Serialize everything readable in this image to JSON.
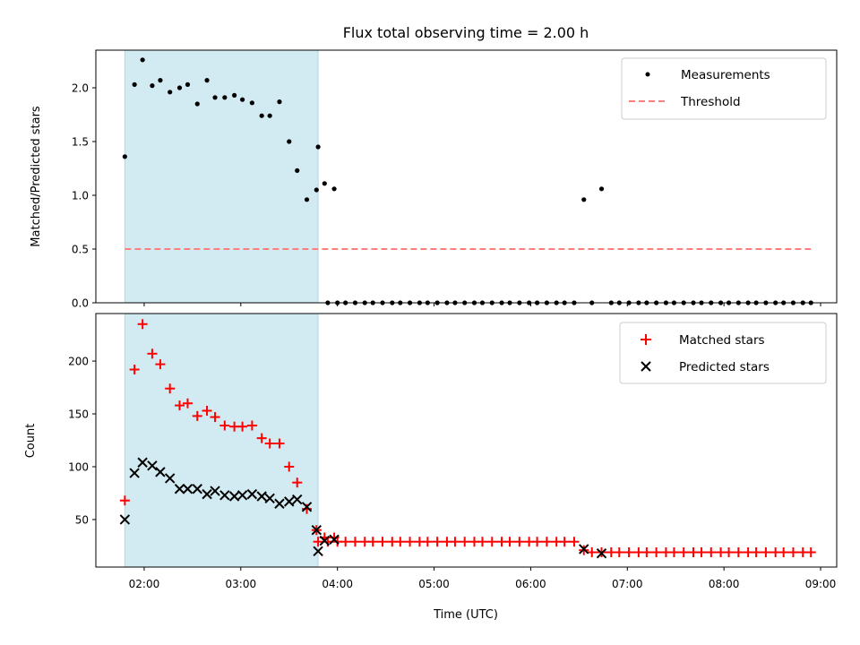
{
  "chart_data": [
    {
      "type": "scatter",
      "title": "Flux total observing time = 2.00 h",
      "xlabel": "",
      "ylabel": "Matched/Predicted stars",
      "ylim": [
        0,
        2.35
      ],
      "yticks": [
        0.0,
        0.5,
        1.0,
        1.5,
        2.0
      ],
      "ytick_labels": [
        "0.0",
        "0.5",
        "1.0",
        "1.5",
        "2.0"
      ],
      "xlim": [
        "01:30",
        "09:10"
      ],
      "highlight_span": [
        "01:48",
        "03:48"
      ],
      "highlight_color": "#add8e6",
      "threshold": 0.5,
      "legend": {
        "placement": "top-right",
        "entries": [
          "Measurements",
          "Threshold"
        ]
      },
      "series": [
        {
          "name": "Measurements",
          "marker": "dot",
          "color": "#000000",
          "points": [
            [
              "01:48",
              1.36
            ],
            [
              "01:54",
              2.03
            ],
            [
              "01:59",
              2.26
            ],
            [
              "02:05",
              2.02
            ],
            [
              "02:10",
              2.07
            ],
            [
              "02:16",
              1.96
            ],
            [
              "02:22",
              2.0
            ],
            [
              "02:27",
              2.03
            ],
            [
              "02:33",
              1.85
            ],
            [
              "02:39",
              2.07
            ],
            [
              "02:44",
              1.91
            ],
            [
              "02:50",
              1.91
            ],
            [
              "02:56",
              1.93
            ],
            [
              "03:01",
              1.89
            ],
            [
              "03:07",
              1.86
            ],
            [
              "03:13",
              1.74
            ],
            [
              "03:18",
              1.74
            ],
            [
              "03:24",
              1.87
            ],
            [
              "03:30",
              1.5
            ],
            [
              "03:35",
              1.23
            ],
            [
              "03:41",
              0.96
            ],
            [
              "03:47",
              1.05
            ],
            [
              "03:52",
              1.11
            ],
            [
              "03:58",
              1.06
            ],
            [
              "03:48",
              1.45
            ],
            [
              "03:54",
              0.0
            ],
            [
              "04:00",
              0.0
            ],
            [
              "04:05",
              0.0
            ],
            [
              "04:11",
              0.0
            ],
            [
              "04:17",
              0.0
            ],
            [
              "04:22",
              0.0
            ],
            [
              "04:28",
              0.0
            ],
            [
              "04:34",
              0.0
            ],
            [
              "04:39",
              0.0
            ],
            [
              "04:45",
              0.0
            ],
            [
              "04:51",
              0.0
            ],
            [
              "04:56",
              0.0
            ],
            [
              "05:02",
              0.0
            ],
            [
              "05:08",
              0.0
            ],
            [
              "05:13",
              0.0
            ],
            [
              "05:19",
              0.0
            ],
            [
              "05:25",
              0.0
            ],
            [
              "05:30",
              0.0
            ],
            [
              "05:36",
              0.0
            ],
            [
              "05:42",
              0.0
            ],
            [
              "05:47",
              0.0
            ],
            [
              "05:53",
              0.0
            ],
            [
              "05:59",
              0.0
            ],
            [
              "06:04",
              0.0
            ],
            [
              "06:10",
              0.0
            ],
            [
              "06:16",
              0.0
            ],
            [
              "06:21",
              0.0
            ],
            [
              "06:27",
              0.0
            ],
            [
              "06:33",
              0.96
            ],
            [
              "06:38",
              0.0
            ],
            [
              "06:44",
              1.06
            ],
            [
              "06:50",
              0.0
            ],
            [
              "06:55",
              0.0
            ],
            [
              "07:01",
              0.0
            ],
            [
              "07:07",
              0.0
            ],
            [
              "07:12",
              0.0
            ],
            [
              "07:18",
              0.0
            ],
            [
              "07:24",
              0.0
            ],
            [
              "07:29",
              0.0
            ],
            [
              "07:35",
              0.0
            ],
            [
              "07:41",
              0.0
            ],
            [
              "07:46",
              0.0
            ],
            [
              "07:52",
              0.0
            ],
            [
              "07:58",
              0.0
            ],
            [
              "08:03",
              0.0
            ],
            [
              "08:09",
              0.0
            ],
            [
              "08:15",
              0.0
            ],
            [
              "08:20",
              0.0
            ],
            [
              "08:26",
              0.0
            ],
            [
              "08:32",
              0.0
            ],
            [
              "08:37",
              0.0
            ],
            [
              "08:43",
              0.0
            ],
            [
              "08:49",
              0.0
            ],
            [
              "08:54",
              0.0
            ]
          ]
        },
        {
          "name": "Threshold",
          "marker": "dashed-line",
          "color": "#ff7f7f",
          "points": [
            [
              "01:48",
              0.5
            ],
            [
              "08:54",
              0.5
            ]
          ]
        }
      ]
    },
    {
      "type": "scatter",
      "title": "",
      "xlabel": "Time (UTC)",
      "ylabel": "Count",
      "ylim": [
        5,
        245
      ],
      "yticks": [
        50,
        100,
        150,
        200
      ],
      "ytick_labels": [
        "50",
        "100",
        "150",
        "200"
      ],
      "xlim": [
        "01:30",
        "09:10"
      ],
      "xticks": [
        "02:00",
        "03:00",
        "04:00",
        "05:00",
        "06:00",
        "07:00",
        "08:00",
        "09:00"
      ],
      "xtick_labels": [
        "02:00",
        "03:00",
        "04:00",
        "05:00",
        "06:00",
        "07:00",
        "08:00",
        "09:00"
      ],
      "highlight_span": [
        "01:48",
        "03:48"
      ],
      "highlight_color": "#add8e6",
      "legend": {
        "placement": "top-right",
        "entries": [
          "Matched stars",
          "Predicted stars"
        ]
      },
      "series": [
        {
          "name": "Matched stars",
          "marker": "plus",
          "color": "#ff0000",
          "points": [
            [
              "01:48",
              68
            ],
            [
              "01:54",
              192
            ],
            [
              "01:59",
              235
            ],
            [
              "02:05",
              207
            ],
            [
              "02:10",
              197
            ],
            [
              "02:16",
              174
            ],
            [
              "02:22",
              158
            ],
            [
              "02:27",
              160
            ],
            [
              "02:33",
              148
            ],
            [
              "02:39",
              153
            ],
            [
              "02:44",
              147
            ],
            [
              "02:50",
              139
            ],
            [
              "02:56",
              138
            ],
            [
              "03:01",
              138
            ],
            [
              "03:07",
              139
            ],
            [
              "03:13",
              127
            ],
            [
              "03:18",
              122
            ],
            [
              "03:24",
              122
            ],
            [
              "03:30",
              100
            ],
            [
              "03:35",
              85
            ],
            [
              "03:41",
              60
            ],
            [
              "03:47",
              40
            ],
            [
              "03:52",
              33
            ],
            [
              "03:58",
              33
            ],
            [
              "03:48",
              29
            ],
            [
              "03:54",
              29
            ],
            [
              "04:00",
              29
            ],
            [
              "04:05",
              29
            ],
            [
              "04:11",
              29
            ],
            [
              "04:17",
              29
            ],
            [
              "04:22",
              29
            ],
            [
              "04:28",
              29
            ],
            [
              "04:34",
              29
            ],
            [
              "04:39",
              29
            ],
            [
              "04:45",
              29
            ],
            [
              "04:51",
              29
            ],
            [
              "04:56",
              29
            ],
            [
              "05:02",
              29
            ],
            [
              "05:08",
              29
            ],
            [
              "05:13",
              29
            ],
            [
              "05:19",
              29
            ],
            [
              "05:25",
              29
            ],
            [
              "05:30",
              29
            ],
            [
              "05:36",
              29
            ],
            [
              "05:42",
              29
            ],
            [
              "05:47",
              29
            ],
            [
              "05:53",
              29
            ],
            [
              "05:59",
              29
            ],
            [
              "06:04",
              29
            ],
            [
              "06:10",
              29
            ],
            [
              "06:16",
              29
            ],
            [
              "06:21",
              29
            ],
            [
              "06:27",
              29
            ],
            [
              "06:33",
              21
            ],
            [
              "06:38",
              19
            ],
            [
              "06:44",
              19
            ],
            [
              "06:50",
              19
            ],
            [
              "06:55",
              19
            ],
            [
              "07:01",
              19
            ],
            [
              "07:07",
              19
            ],
            [
              "07:12",
              19
            ],
            [
              "07:18",
              19
            ],
            [
              "07:24",
              19
            ],
            [
              "07:29",
              19
            ],
            [
              "07:35",
              19
            ],
            [
              "07:41",
              19
            ],
            [
              "07:46",
              19
            ],
            [
              "07:52",
              19
            ],
            [
              "07:58",
              19
            ],
            [
              "08:03",
              19
            ],
            [
              "08:09",
              19
            ],
            [
              "08:15",
              19
            ],
            [
              "08:20",
              19
            ],
            [
              "08:26",
              19
            ],
            [
              "08:32",
              19
            ],
            [
              "08:37",
              19
            ],
            [
              "08:43",
              19
            ],
            [
              "08:49",
              19
            ],
            [
              "08:54",
              19
            ]
          ]
        },
        {
          "name": "Predicted stars",
          "marker": "x",
          "color": "#000000",
          "points": [
            [
              "01:48",
              50
            ],
            [
              "01:54",
              94
            ],
            [
              "01:59",
              104
            ],
            [
              "02:05",
              101
            ],
            [
              "02:10",
              95
            ],
            [
              "02:16",
              89
            ],
            [
              "02:22",
              79
            ],
            [
              "02:27",
              79
            ],
            [
              "02:33",
              79
            ],
            [
              "02:39",
              74
            ],
            [
              "02:44",
              77
            ],
            [
              "02:50",
              73
            ],
            [
              "02:56",
              72
            ],
            [
              "03:01",
              73
            ],
            [
              "03:07",
              74
            ],
            [
              "03:13",
              72
            ],
            [
              "03:18",
              70
            ],
            [
              "03:24",
              65
            ],
            [
              "03:30",
              67
            ],
            [
              "03:35",
              69
            ],
            [
              "03:41",
              62
            ],
            [
              "03:47",
              40
            ],
            [
              "03:52",
              30
            ],
            [
              "03:58",
              31
            ],
            [
              "03:48",
              20
            ],
            [
              "06:33",
              22
            ],
            [
              "06:44",
              18
            ]
          ]
        }
      ]
    }
  ]
}
